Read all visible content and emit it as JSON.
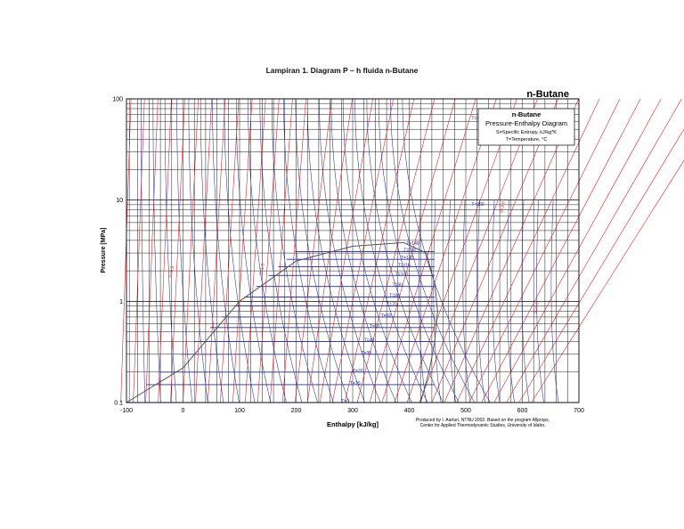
{
  "caption": "Lampiran 1. Diagram P – h fluida n-Butane",
  "chart_data": {
    "type": "line",
    "corner_title": "n-Butane",
    "legend_box": {
      "title": "n-Butane",
      "subtitle": "Pressure-Enthalpy Diagram",
      "line1": "S=Specific Entropy, kJ/kg*K",
      "line2": "T=Temperature, °C"
    },
    "xlabel": "Enthalpy [kJ/kg]",
    "ylabel": "Pressure [MPa]",
    "x_ticks": [
      "-100",
      "0",
      "100",
      "200",
      "300",
      "400",
      "500",
      "600",
      "700"
    ],
    "x_tick_values": [
      -100,
      0,
      100,
      200,
      300,
      400,
      500,
      600,
      700
    ],
    "y_ticks": [
      "0.1",
      "1",
      "10",
      "100"
    ],
    "y_tick_values": [
      0.1,
      1,
      10,
      100
    ],
    "xlim": [
      -100,
      700
    ],
    "ylim": [
      0.1,
      100
    ],
    "y_scale": "log",
    "grid": true,
    "colors": {
      "grid": "#000000",
      "isotherm": "#2b2f8c",
      "isentrope": "#d9262b",
      "dome": "#555555"
    },
    "credit_line1": "Produced by I. Aartun, NTNU 2002. Based on the program Allprops,",
    "credit_line2": "Center for Applied Thermodynamic Studies, University of Idaho.",
    "saturation_dome": {
      "liquid": [
        [
          -100,
          0.1
        ],
        [
          0,
          0.22
        ],
        [
          100,
          1.0
        ],
        [
          200,
          2.5
        ],
        [
          300,
          3.5
        ],
        [
          390,
          3.8
        ]
      ],
      "vapor": [
        [
          390,
          3.8
        ],
        [
          430,
          3.0
        ],
        [
          445,
          1.5
        ],
        [
          450,
          0.8
        ],
        [
          445,
          0.4
        ],
        [
          435,
          0.2
        ],
        [
          420,
          0.1
        ]
      ]
    },
    "isotherm_labels": [
      {
        "label": "T=0",
        "h": 280,
        "p": 0.1
      },
      {
        "label": "T=10",
        "h": 295,
        "p": 0.15
      },
      {
        "label": "T=20",
        "h": 300,
        "p": 0.2
      },
      {
        "label": "T=30",
        "h": 315,
        "p": 0.3
      },
      {
        "label": "T=40",
        "h": 320,
        "p": 0.4
      },
      {
        "label": "T=50",
        "h": 330,
        "p": 0.55
      },
      {
        "label": "T=60",
        "h": 350,
        "p": 0.7
      },
      {
        "label": "T=70",
        "h": 360,
        "p": 0.9
      },
      {
        "label": "T=80",
        "h": 365,
        "p": 1.1
      },
      {
        "label": "T=90",
        "h": 370,
        "p": 1.4
      },
      {
        "label": "T=100",
        "h": 375,
        "p": 1.8
      },
      {
        "label": "T=110",
        "h": 380,
        "p": 2.2
      },
      {
        "label": "T=120",
        "h": 385,
        "p": 2.6
      },
      {
        "label": "T=130",
        "h": 390,
        "p": 3.1
      },
      {
        "label": "T=140",
        "h": 395,
        "p": 3.6
      },
      {
        "label": "T=200",
        "h": 510,
        "p": 8.8
      },
      {
        "label": "T=400",
        "h": 510,
        "p": 62
      }
    ],
    "entropy_labels": [
      {
        "label": "S=0.5",
        "h": -20,
        "p": 1.7
      },
      {
        "label": "S=1.5",
        "h": 140,
        "p": 1.8
      },
      {
        "label": "S=3.0",
        "h": 565,
        "p": 7.4
      },
      {
        "label": "S=4.0",
        "h": 625,
        "p": 0.75
      }
    ]
  }
}
